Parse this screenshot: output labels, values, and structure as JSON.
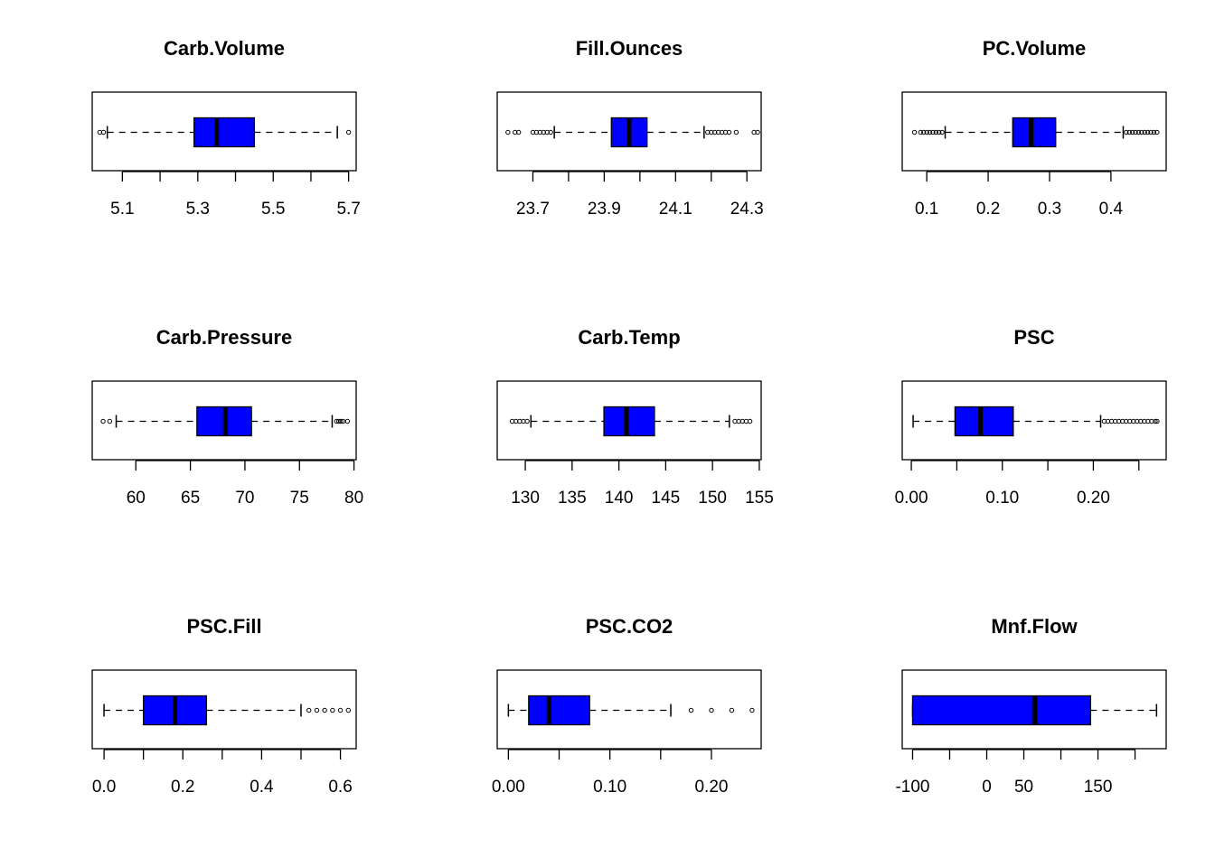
{
  "colors": {
    "box_fill": "#0000FF",
    "line": "#000000",
    "background": "#FFFFFF"
  },
  "chart_data": [
    {
      "type": "boxplot",
      "orientation": "horizontal",
      "title": "Carb.Volume",
      "xlim": [
        5.02,
        5.72
      ],
      "ticks": [
        5.1,
        5.2,
        5.3,
        5.4,
        5.5,
        5.6,
        5.7
      ],
      "tick_labels": [
        "5.1",
        "",
        "5.3",
        "",
        "5.5",
        "",
        "5.7"
      ],
      "whisker_low": 5.06,
      "q1": 5.29,
      "median": 5.35,
      "q3": 5.45,
      "whisker_high": 5.67,
      "outliers": [
        5.04,
        5.05,
        5.7
      ]
    },
    {
      "type": "boxplot",
      "orientation": "horizontal",
      "title": "Fill.Ounces",
      "xlim": [
        23.6,
        24.34
      ],
      "ticks": [
        23.7,
        23.8,
        23.9,
        24.0,
        24.1,
        24.2,
        24.3
      ],
      "tick_labels": [
        "23.7",
        "",
        "23.9",
        "",
        "24.1",
        "",
        "24.3"
      ],
      "whisker_low": 23.76,
      "q1": 23.92,
      "median": 23.97,
      "q3": 24.02,
      "whisker_high": 24.18,
      "outliers": [
        23.63,
        23.65,
        23.66,
        23.7,
        23.71,
        23.72,
        23.73,
        23.74,
        23.75,
        24.19,
        24.2,
        24.21,
        24.22,
        24.23,
        24.24,
        24.25,
        24.27,
        24.32,
        24.33
      ]
    },
    {
      "type": "boxplot",
      "orientation": "horizontal",
      "title": "PC.Volume",
      "xlim": [
        0.06,
        0.49
      ],
      "ticks": [
        0.1,
        0.2,
        0.3,
        0.4
      ],
      "tick_labels": [
        "0.1",
        "0.2",
        "0.3",
        "0.4"
      ],
      "whisker_low": 0.13,
      "q1": 0.24,
      "median": 0.27,
      "q3": 0.31,
      "whisker_high": 0.42,
      "outliers": [
        0.08,
        0.09,
        0.095,
        0.1,
        0.105,
        0.11,
        0.115,
        0.12,
        0.125,
        0.425,
        0.43,
        0.435,
        0.44,
        0.445,
        0.45,
        0.455,
        0.46,
        0.465,
        0.47,
        0.475
      ]
    },
    {
      "type": "boxplot",
      "orientation": "horizontal",
      "title": "Carb.Pressure",
      "xlim": [
        56.0,
        80.2
      ],
      "ticks": [
        60,
        65,
        70,
        75,
        80
      ],
      "tick_labels": [
        "60",
        "65",
        "70",
        "75",
        "80"
      ],
      "whisker_low": 58.2,
      "q1": 65.6,
      "median": 68.2,
      "q3": 70.6,
      "whisker_high": 78.0,
      "outliers": [
        57.0,
        57.6,
        78.4,
        78.6,
        78.8,
        79.0,
        79.4
      ]
    },
    {
      "type": "boxplot",
      "orientation": "horizontal",
      "title": "Carb.Temp",
      "xlim": [
        127.0,
        155.2
      ],
      "ticks": [
        130,
        135,
        140,
        145,
        150,
        155
      ],
      "tick_labels": [
        "130",
        "135",
        "140",
        "145",
        "150",
        "155"
      ],
      "whisker_low": 130.6,
      "q1": 138.4,
      "median": 140.8,
      "q3": 143.8,
      "whisker_high": 151.8,
      "outliers": [
        128.6,
        129.0,
        129.4,
        129.8,
        130.2,
        152.4,
        152.8,
        153.2,
        153.6,
        154.0
      ]
    },
    {
      "type": "boxplot",
      "orientation": "horizontal",
      "title": "PSC",
      "xlim": [
        -0.01,
        0.28
      ],
      "ticks": [
        0.0,
        0.05,
        0.1,
        0.15,
        0.2,
        0.25
      ],
      "tick_labels": [
        "0.00",
        "",
        "0.10",
        "",
        "0.20",
        ""
      ],
      "whisker_low": 0.002,
      "q1": 0.048,
      "median": 0.076,
      "q3": 0.112,
      "whisker_high": 0.208,
      "outliers": [
        0.212,
        0.216,
        0.22,
        0.224,
        0.228,
        0.232,
        0.236,
        0.24,
        0.244,
        0.248,
        0.252,
        0.256,
        0.26,
        0.264,
        0.268,
        0.27
      ]
    },
    {
      "type": "boxplot",
      "orientation": "horizontal",
      "title": "PSC.Fill",
      "xlim": [
        -0.03,
        0.64
      ],
      "ticks": [
        0.0,
        0.1,
        0.2,
        0.3,
        0.4,
        0.5,
        0.6
      ],
      "tick_labels": [
        "0.0",
        "",
        "0.2",
        "",
        "0.4",
        "",
        "0.6"
      ],
      "whisker_low": 0.0,
      "q1": 0.1,
      "median": 0.18,
      "q3": 0.26,
      "whisker_high": 0.5,
      "outliers": [
        0.52,
        0.54,
        0.56,
        0.58,
        0.6,
        0.62
      ]
    },
    {
      "type": "boxplot",
      "orientation": "horizontal",
      "title": "PSC.CO2",
      "xlim": [
        -0.011,
        0.249
      ],
      "ticks": [
        0.0,
        0.05,
        0.1,
        0.15,
        0.2
      ],
      "tick_labels": [
        "0.00",
        "",
        "0.10",
        "",
        "0.20"
      ],
      "whisker_low": 0.0,
      "q1": 0.02,
      "median": 0.04,
      "q3": 0.08,
      "whisker_high": 0.16,
      "outliers": [
        0.18,
        0.2,
        0.22,
        0.24
      ]
    },
    {
      "type": "boxplot",
      "orientation": "horizontal",
      "title": "Mnf.Flow",
      "xlim": [
        -114,
        242
      ],
      "ticks": [
        -100,
        -50,
        0,
        50,
        100,
        150,
        200
      ],
      "tick_labels": [
        "-100",
        "",
        "0",
        "50",
        "",
        "150",
        ""
      ],
      "whisker_low": -100,
      "q1": -100,
      "median": 65,
      "q3": 140,
      "whisker_high": 229,
      "outliers": []
    }
  ]
}
